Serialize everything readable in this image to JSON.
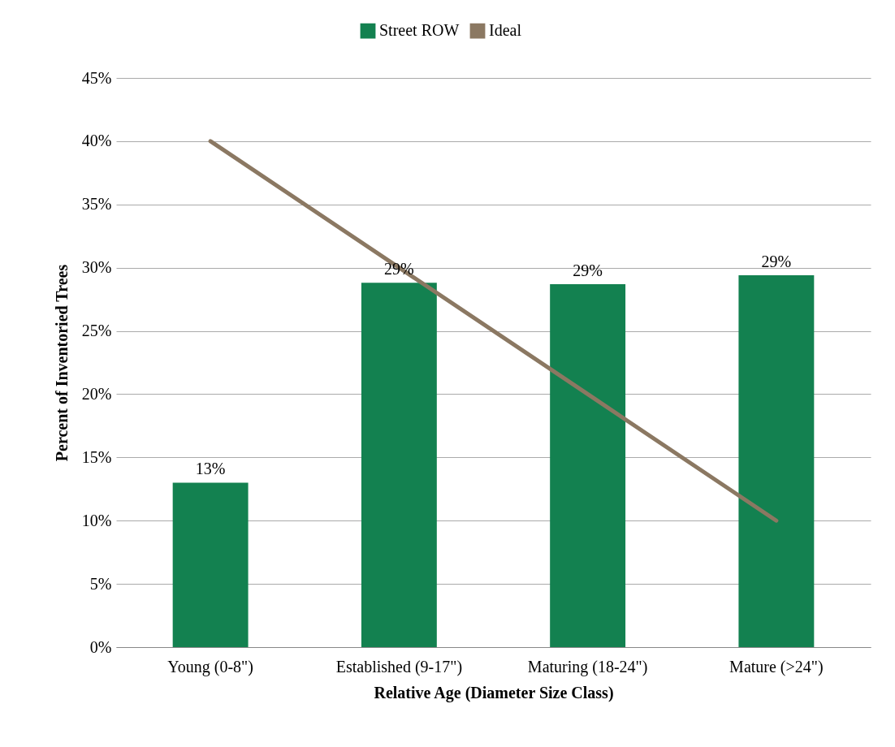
{
  "chart_data": {
    "type": "bar",
    "xlabel": "Relative Age (Diameter Size Class)",
    "ylabel": "Percent of Inventoried Trees",
    "categories": [
      "Young (0-8\")",
      "Established (9-17\")",
      "Maturing (18-24\")",
      "Mature (>24\")"
    ],
    "series": [
      {
        "name": "Street ROW",
        "color": "#138150",
        "values": [
          13.0,
          28.8,
          28.7,
          29.4
        ],
        "value_labels": [
          "13%",
          "29%",
          "29%",
          "29%"
        ]
      },
      {
        "name": "Ideal",
        "type": "line",
        "color": "#8b7862",
        "values": [
          40,
          30,
          20,
          10
        ],
        "marker": "none"
      }
    ],
    "ylim": [
      0,
      45
    ],
    "yticks": [
      {
        "value": 0,
        "label": "0%"
      },
      {
        "value": 5,
        "label": "5%"
      },
      {
        "value": 10,
        "label": "10%"
      },
      {
        "value": 15,
        "label": "15%"
      },
      {
        "value": 20,
        "label": "20%"
      },
      {
        "value": 25,
        "label": "25%"
      },
      {
        "value": 30,
        "label": "30%"
      },
      {
        "value": 35,
        "label": "35%"
      },
      {
        "value": 40,
        "label": "40%"
      },
      {
        "value": 45,
        "label": "45%"
      }
    ],
    "grid": "y",
    "legend": "top"
  }
}
